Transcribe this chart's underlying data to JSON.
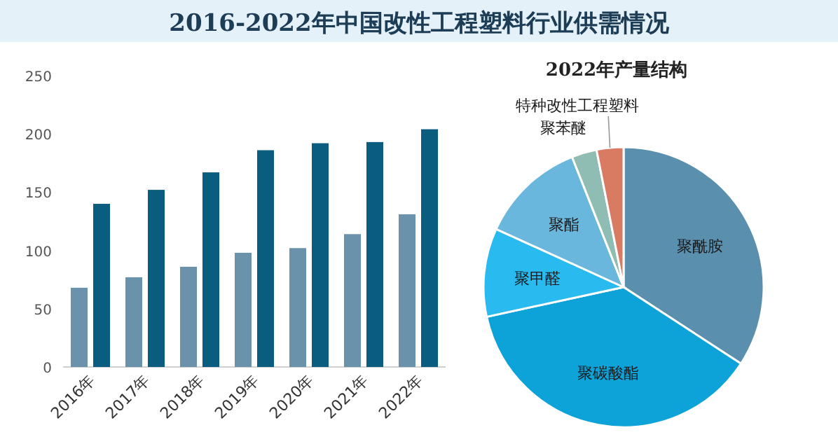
{
  "chart_data": [
    {
      "type": "bar",
      "title": "2016-2022年中国改性工程塑料行业供需情况",
      "categories": [
        "2016年",
        "2017年",
        "2018年",
        "2019年",
        "2020年",
        "2021年",
        "2022年"
      ],
      "series": [
        {
          "color": "#6a93ab",
          "values": [
            68,
            77,
            86,
            98,
            102,
            114,
            131
          ]
        },
        {
          "color": "#0b5d80",
          "values": [
            140,
            152,
            167,
            186,
            192,
            193,
            204
          ]
        }
      ],
      "ylim": [
        0,
        250
      ],
      "yticks": [
        0,
        50,
        100,
        150,
        200,
        250
      ],
      "grid": false
    },
    {
      "type": "pie",
      "title": "2022年产量结构",
      "categories": [
        "聚酰胺",
        "聚碳酸酯",
        "聚甲醛",
        "聚酯",
        "聚苯醚",
        "特种改性工程塑料"
      ],
      "values": [
        34.2,
        37.4,
        10.2,
        12.2,
        2.9,
        3.1
      ],
      "colors": [
        "#5b8fae",
        "#0ea3d8",
        "#29baf0",
        "#6ab7de",
        "#8fbcb3",
        "#d97a62"
      ]
    }
  ]
}
